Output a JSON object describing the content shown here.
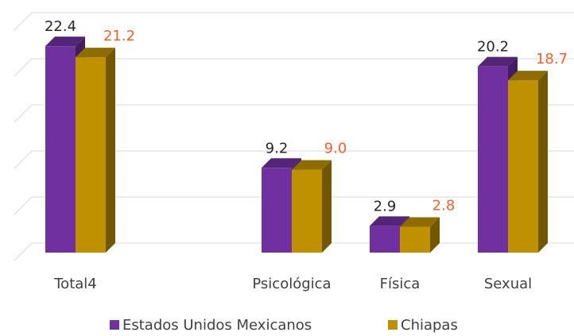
{
  "chart_data": {
    "type": "bar3d",
    "categories": [
      "Total4",
      null,
      "Psicológica",
      "Física",
      "Sexual"
    ],
    "series": [
      {
        "name": "Estados Unidos Mexicanos",
        "color": "#7030a0",
        "values": [
          22.4,
          null,
          9.2,
          2.9,
          20.2
        ]
      },
      {
        "name": "Chiapas",
        "color": "#bf9000",
        "values": [
          21.2,
          null,
          9.0,
          2.8,
          18.7
        ],
        "value_labels": [
          "21.2",
          null,
          "9.0",
          "2.8",
          "18.7"
        ]
      }
    ],
    "ylim": [
      0,
      25
    ],
    "yticks": [
      0,
      5,
      10,
      15,
      20,
      25
    ],
    "grid": true,
    "legend": "bottom"
  }
}
